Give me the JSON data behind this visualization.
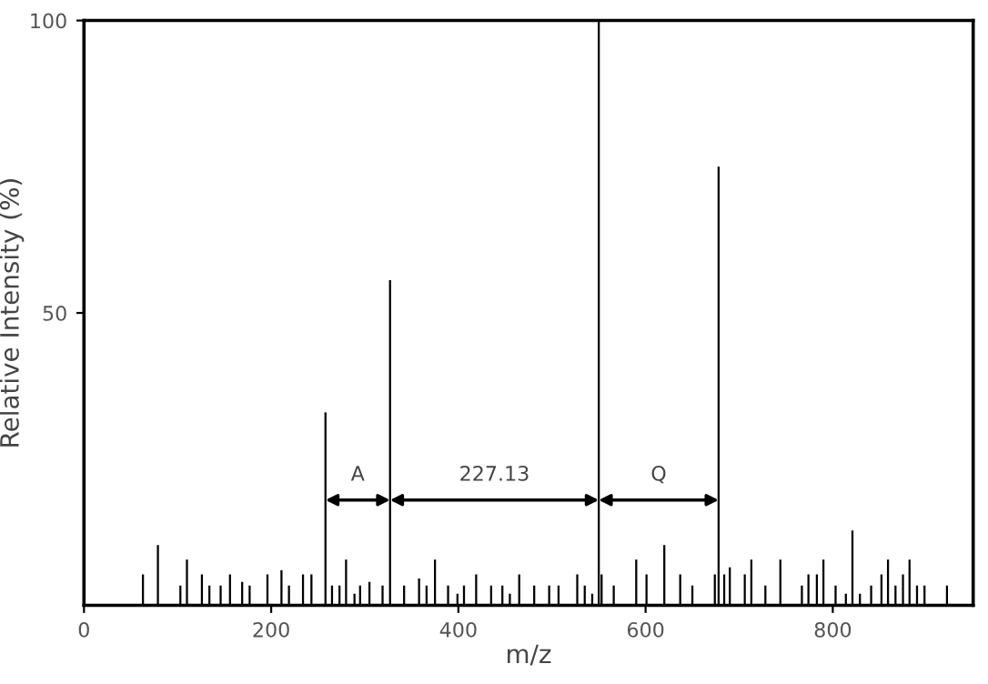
{
  "chart_data": {
    "type": "bar",
    "xlabel": "m/z",
    "ylabel": "Relative Intensity (%)",
    "x": [
      63,
      79,
      103,
      110,
      126,
      134,
      146,
      156,
      169,
      177,
      196,
      211,
      219,
      234,
      243,
      258,
      265,
      273,
      280,
      289,
      295,
      305,
      319,
      327,
      342,
      358,
      366,
      375,
      389,
      399,
      406,
      419,
      435,
      447,
      455,
      465,
      481,
      497,
      507,
      527,
      535,
      543,
      550,
      553,
      566,
      590,
      601,
      620,
      637,
      650,
      674,
      678,
      684,
      690,
      706,
      713,
      728,
      744,
      767,
      774,
      783,
      790,
      803,
      814,
      821,
      829,
      841,
      852,
      859,
      867,
      875,
      882,
      890,
      898,
      922
    ],
    "values": [
      5.3,
      10.3,
      3.4,
      7.8,
      5.3,
      3.4,
      3.4,
      5.3,
      4,
      3.4,
      5.3,
      6,
      3.4,
      5.3,
      5.3,
      33,
      3.4,
      3.4,
      7.8,
      2,
      3.4,
      4,
      3.4,
      55.6,
      3.4,
      4.6,
      3.4,
      7.8,
      3.4,
      2,
      3.4,
      5.3,
      3.4,
      3.4,
      2,
      5.3,
      3.4,
      3.4,
      3.4,
      5.3,
      3.4,
      2,
      100,
      5.3,
      3.4,
      7.8,
      5.3,
      10.3,
      5.3,
      3.4,
      5.3,
      75,
      5.3,
      6.5,
      5.3,
      7.8,
      3.4,
      7.8,
      3.4,
      5.3,
      5.3,
      7.8,
      3.4,
      2,
      12.8,
      2,
      3.4,
      5.3,
      7.8,
      3.4,
      5.3,
      7.8,
      3.4,
      3.4,
      3.4
    ],
    "color": "#000000",
    "xlim": [
      0,
      950
    ],
    "ylim": [
      0,
      100
    ],
    "xticks": [
      0,
      200,
      400,
      600,
      800
    ],
    "yticks": [
      50,
      100
    ],
    "annotations": [
      "A",
      "227.13",
      "Q"
    ],
    "grid": false
  }
}
